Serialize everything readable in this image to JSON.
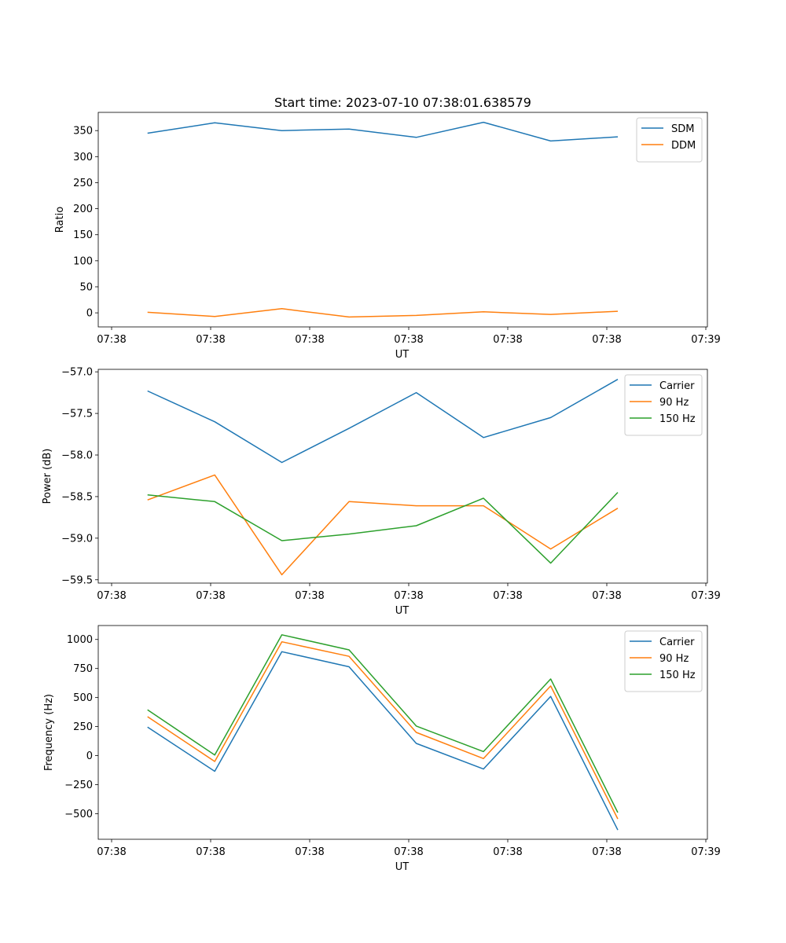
{
  "title": "Start time: 2023-07-10 07:38:01.638579",
  "colors": {
    "blue": "#1f77b4",
    "orange": "#ff7f0e",
    "green": "#2ca02c"
  },
  "chart_data": [
    {
      "type": "line",
      "title": "Start time: 2023-07-10 07:38:01.638579",
      "xlabel": "UT",
      "ylabel": "Ratio",
      "x_ticks": [
        "07:38",
        "07:38",
        "07:38",
        "07:38",
        "07:38",
        "07:38",
        "07:39"
      ],
      "xlim": [
        -0.5,
        13.1
      ],
      "x": [
        0.6,
        2.1,
        3.6,
        5.1,
        6.6,
        8.1,
        9.6,
        11.1
      ],
      "ylim": [
        -27,
        385
      ],
      "y_ticks": [
        0,
        50,
        100,
        150,
        200,
        250,
        300,
        350
      ],
      "y_tick_labels": [
        "0",
        "50",
        "100",
        "150",
        "200",
        "250",
        "300",
        "350"
      ],
      "legend": "top-right",
      "series": [
        {
          "name": "SDM",
          "color": "#1f77b4",
          "values": [
            345,
            365,
            350,
            353,
            337,
            366,
            330,
            338
          ]
        },
        {
          "name": "DDM",
          "color": "#ff7f0e",
          "values": [
            1,
            -7,
            8,
            -8,
            -5,
            2,
            -3,
            3
          ]
        }
      ]
    },
    {
      "type": "line",
      "title": "",
      "xlabel": "UT",
      "ylabel": "Power (dB)",
      "x_ticks": [
        "07:38",
        "07:38",
        "07:38",
        "07:38",
        "07:38",
        "07:38",
        "07:39"
      ],
      "xlim": [
        -0.5,
        13.1
      ],
      "x": [
        0.6,
        2.1,
        3.6,
        5.1,
        6.6,
        8.1,
        9.6,
        11.1
      ],
      "ylim": [
        -59.54,
        -56.97
      ],
      "y_ticks": [
        -59.5,
        -59.0,
        -58.5,
        -58.0,
        -57.5,
        -57.0
      ],
      "y_tick_labels": [
        "−59.5",
        "−59.0",
        "−58.5",
        "−58.0",
        "−57.5",
        "−57.0"
      ],
      "legend": "top-right",
      "series": [
        {
          "name": "Carrier",
          "color": "#1f77b4",
          "values": [
            -57.23,
            -57.6,
            -58.09,
            -57.68,
            -57.25,
            -57.79,
            -57.55,
            -57.09
          ]
        },
        {
          "name": "90 Hz",
          "color": "#ff7f0e",
          "values": [
            -58.54,
            -58.24,
            -59.44,
            -58.56,
            -58.61,
            -58.61,
            -59.13,
            -58.64
          ]
        },
        {
          "name": "150 Hz",
          "color": "#2ca02c",
          "values": [
            -58.48,
            -58.56,
            -59.03,
            -58.95,
            -58.85,
            -58.52,
            -59.3,
            -58.45
          ]
        }
      ]
    },
    {
      "type": "line",
      "title": "",
      "xlabel": "UT",
      "ylabel": "Frequency (Hz)",
      "x_ticks": [
        "07:38",
        "07:38",
        "07:38",
        "07:38",
        "07:38",
        "07:38",
        "07:39"
      ],
      "xlim": [
        -0.5,
        13.1
      ],
      "x": [
        0.6,
        2.1,
        3.6,
        5.1,
        6.6,
        8.1,
        9.6,
        11.1
      ],
      "ylim": [
        -720,
        1120
      ],
      "y_ticks": [
        -500,
        -250,
        0,
        250,
        500,
        750,
        1000
      ],
      "y_tick_labels": [
        "−500",
        "−250",
        "0",
        "250",
        "500",
        "750",
        "1000"
      ],
      "legend": "top-right",
      "series": [
        {
          "name": "Carrier",
          "color": "#1f77b4",
          "values": [
            245,
            -135,
            895,
            765,
            105,
            -115,
            510,
            -640
          ]
        },
        {
          "name": "90 Hz",
          "color": "#ff7f0e",
          "values": [
            335,
            -50,
            980,
            855,
            200,
            -25,
            600,
            -545
          ]
        },
        {
          "name": "150 Hz",
          "color": "#2ca02c",
          "values": [
            395,
            5,
            1040,
            910,
            255,
            35,
            660,
            -490
          ]
        }
      ]
    }
  ]
}
